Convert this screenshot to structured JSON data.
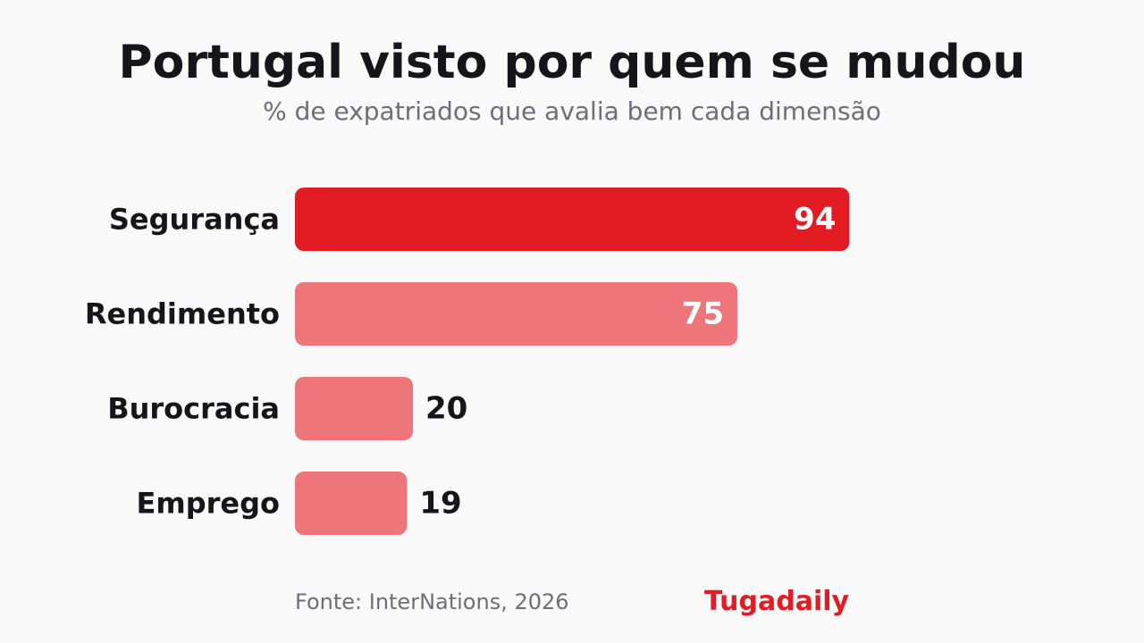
{
  "header": {
    "title": "Portugal visto por quem se mudou",
    "subtitle": "% de expatriados que avalia bem cada dimensão"
  },
  "chart_data": {
    "type": "bar",
    "orientation": "horizontal",
    "categories": [
      "Segurança",
      "Rendimento",
      "Burocracia",
      "Emprego"
    ],
    "values": [
      94,
      75,
      20,
      19
    ],
    "xlim": [
      0,
      100
    ],
    "grid": false,
    "title": "Portugal visto por quem se mudou",
    "subtitle": "% de expatriados que avalia bem cada dimensão",
    "highlight_color": "#e31c23",
    "base_color": "#ee767b",
    "label_inside_color": "#ffffff",
    "label_outside_color": "#16161a",
    "category_label_color": "#16161a"
  },
  "footer": {
    "source": "Fonte: InterNations, 2026",
    "brand": "Tugadaily",
    "brand_color": "#e31c23"
  }
}
